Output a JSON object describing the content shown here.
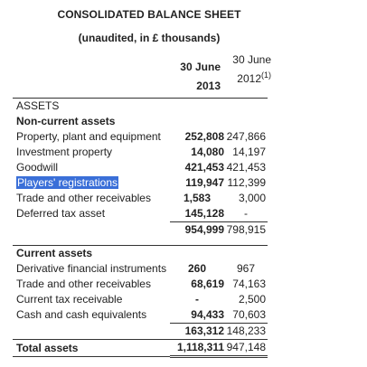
{
  "document": {
    "title": "CONSOLIDATED BALANCE SHEET",
    "subtitle": "(unaudited, in £ thousands)",
    "columns": [
      {
        "line1": "30 June",
        "line2": "2013"
      },
      {
        "line1": "30 June",
        "line2": "2012",
        "note": "(1)"
      }
    ]
  },
  "sections": {
    "assets_header": "ASSETS",
    "non_current_header": "Non-current assets",
    "current_header": "Current assets"
  },
  "non_current": [
    {
      "label": "Property, plant and equipment",
      "v2013": "252,808",
      "v2012": "247,866"
    },
    {
      "label": "Investment property",
      "v2013": "14,080",
      "v2012": "14,197"
    },
    {
      "label": "Goodwill",
      "v2013": "421,453",
      "v2012": "421,453"
    },
    {
      "label": "Players' registrations",
      "v2013": "119,947",
      "v2012": "112,399"
    },
    {
      "label": "Trade and other receivables",
      "v2013": "1,583",
      "v2012": "3,000"
    },
    {
      "label": "Deferred tax asset",
      "v2013": "145,128",
      "v2012": "-"
    }
  ],
  "non_current_total": {
    "v2013": "954,999",
    "v2012": "798,915"
  },
  "current": [
    {
      "label": "Derivative financial instruments",
      "v2013": "260",
      "v2012": "967"
    },
    {
      "label": "Trade and other receivables",
      "v2013": "68,619",
      "v2012": "74,163"
    },
    {
      "label": "Current tax receivable",
      "v2013": "-",
      "v2012": "2,500"
    },
    {
      "label": "Cash and cash equivalents",
      "v2013": "94,433",
      "v2012": "70,603"
    }
  ],
  "current_total": {
    "v2013": "163,312",
    "v2012": "148,233"
  },
  "total_assets": {
    "label": "Total assets",
    "v2013": "1,118,311",
    "v2012": "947,148"
  },
  "colors": {
    "selection": "#3a6fd8",
    "text": "#222222"
  }
}
